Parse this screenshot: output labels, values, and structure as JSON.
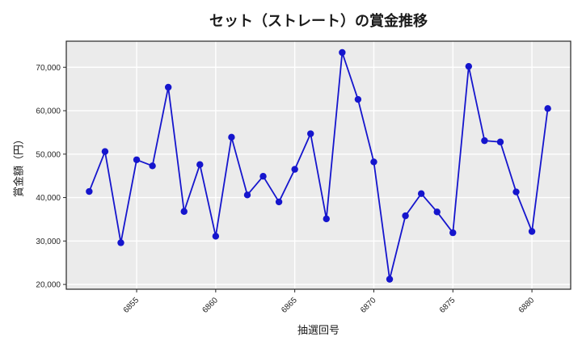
{
  "title": "セット（ストレート）の賞金推移",
  "chart_data": {
    "type": "line",
    "title": "セット（ストレート）の賞金推移",
    "xlabel": "抽選回号",
    "ylabel": "賞金額（円）",
    "x": [
      6852,
      6853,
      6854,
      6855,
      6856,
      6857,
      6858,
      6859,
      6860,
      6861,
      6862,
      6863,
      6864,
      6865,
      6866,
      6867,
      6868,
      6869,
      6870,
      6871,
      6872,
      6873,
      6874,
      6875,
      6876,
      6877,
      6878,
      6879,
      6880,
      6881
    ],
    "values": [
      41400,
      50600,
      29600,
      48700,
      47300,
      65400,
      36800,
      47600,
      31100,
      53900,
      40600,
      44900,
      39000,
      46500,
      54700,
      35100,
      73400,
      62600,
      48200,
      21200,
      35800,
      40900,
      36700,
      31900,
      70200,
      53100,
      52800,
      41300,
      32200,
      60500
    ],
    "x_ticks": [
      6855,
      6860,
      6865,
      6870,
      6875,
      6880
    ],
    "y_ticks": [
      20000,
      30000,
      40000,
      50000,
      60000,
      70000
    ],
    "y_tick_labels": [
      "20,000",
      "30,000",
      "40,000",
      "50,000",
      "60,000",
      "70,000"
    ],
    "xlim": [
      6850.55,
      6882.45
    ],
    "ylim": [
      18900,
      76000
    ],
    "grid": true,
    "legend_position": "none",
    "line_color": "#1515cd",
    "marker_color": "#1515cd",
    "plot_bg_color": "#ebebeb",
    "grid_color": "#ffffff",
    "spine_color": "#262626",
    "tick_label_color": "#262626"
  }
}
